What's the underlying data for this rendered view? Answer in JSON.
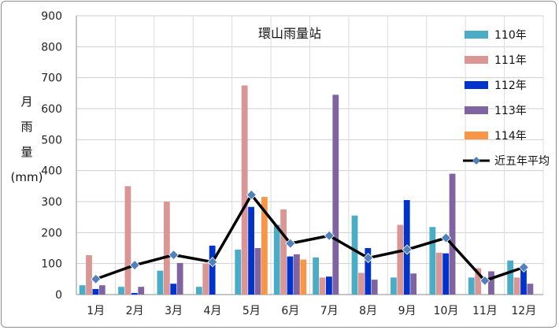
{
  "chart_data": {
    "type": "bar",
    "title": "環山雨量站",
    "ylabel_lines": [
      "月",
      "雨",
      "量",
      "(mm)"
    ],
    "categories": [
      "1月",
      "2月",
      "3月",
      "4月",
      "5月",
      "6月",
      "7月",
      "8月",
      "9月",
      "10月",
      "11月",
      "12月"
    ],
    "ylim": [
      0,
      900
    ],
    "yticks": [
      0,
      100,
      200,
      300,
      400,
      500,
      600,
      700,
      800,
      900
    ],
    "grid": true,
    "legend_position": "right",
    "series": [
      {
        "name": "110年",
        "type": "bar",
        "color": "#4bacc6",
        "values": [
          30,
          25,
          77,
          25,
          145,
          225,
          120,
          255,
          55,
          218,
          55,
          110
        ]
      },
      {
        "name": "111年",
        "type": "bar",
        "color": "#d99694",
        "values": [
          127,
          350,
          300,
          100,
          675,
          275,
          55,
          70,
          225,
          135,
          85,
          55
        ]
      },
      {
        "name": "112年",
        "type": "bar",
        "color": "#0033cc",
        "values": [
          18,
          5,
          35,
          158,
          283,
          123,
          58,
          150,
          305,
          133,
          0,
          90
        ]
      },
      {
        "name": "113年",
        "type": "bar",
        "color": "#8064a2",
        "values": [
          30,
          25,
          102,
          0,
          150,
          130,
          645,
          48,
          68,
          390,
          75,
          35
        ]
      },
      {
        "name": "114年",
        "type": "bar",
        "color": "#f79646",
        "values": [
          0,
          0,
          0,
          0,
          315,
          113,
          0,
          0,
          0,
          0,
          0,
          0
        ]
      },
      {
        "name": "近五年平均",
        "type": "line",
        "color": "#000000",
        "marker_color": "#4f81bd",
        "values": [
          50,
          95,
          128,
          105,
          322,
          165,
          190,
          118,
          145,
          183,
          45,
          88
        ]
      }
    ]
  }
}
